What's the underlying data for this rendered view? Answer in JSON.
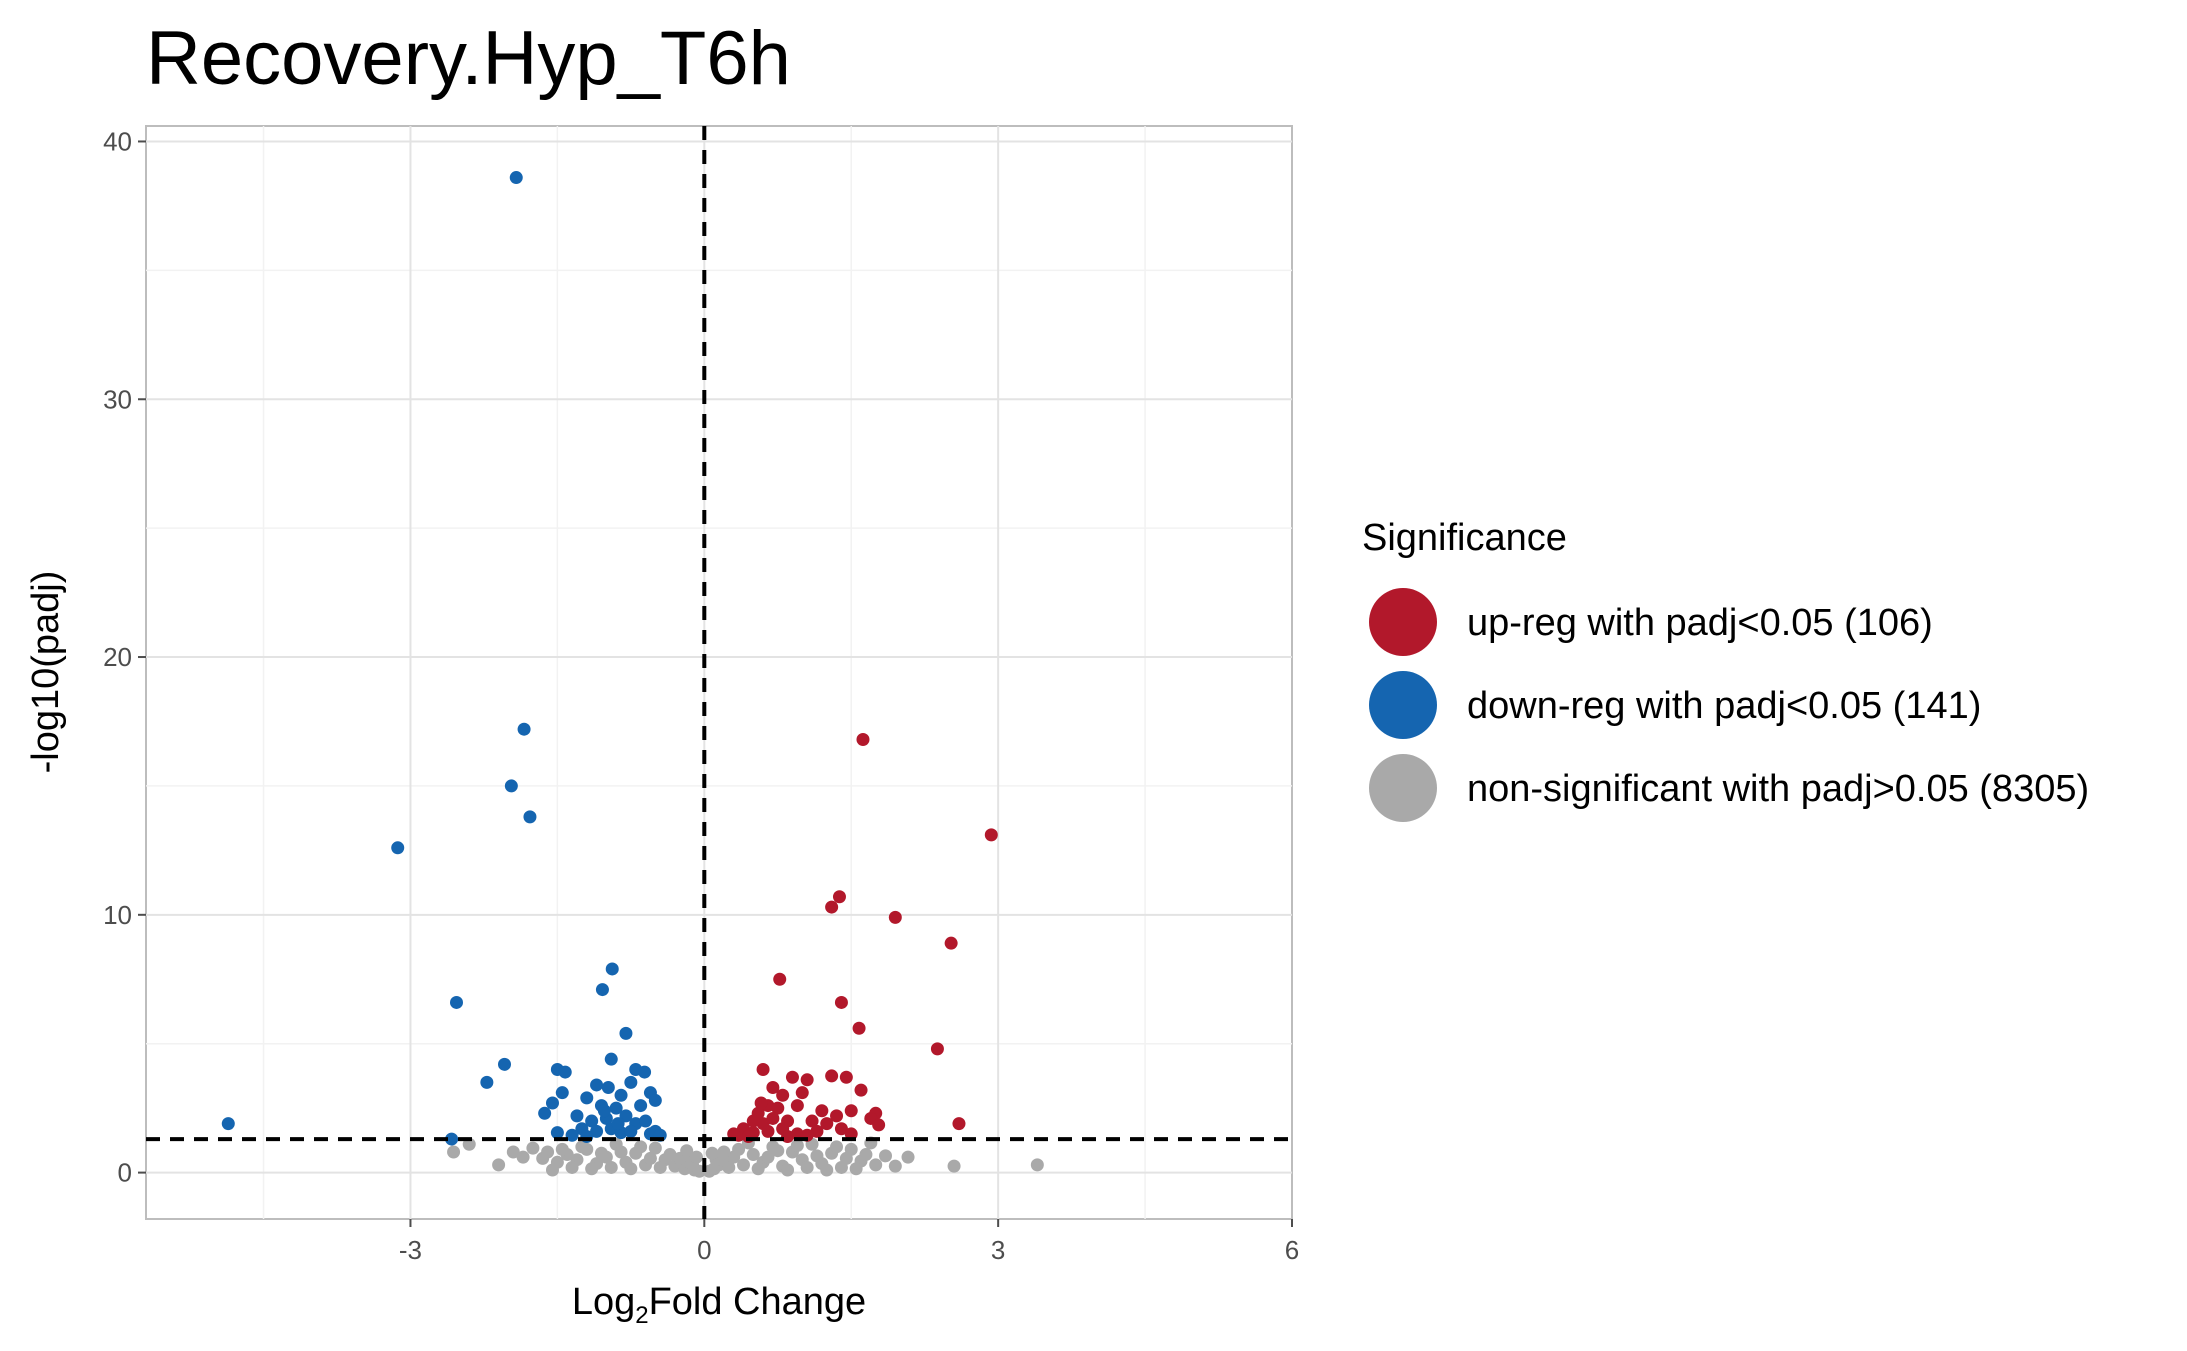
{
  "chart_data": {
    "type": "scatter",
    "title": "Recovery.Hyp_T6h",
    "xlabel": {
      "prefix": "Log",
      "subscript": "2",
      "suffix": "Fold Change"
    },
    "ylabel": "-log10(padj)",
    "xlim": [
      -5.7,
      6.0
    ],
    "ylim": [
      -1.8,
      40.6
    ],
    "x_ticks": [
      -3,
      0,
      3,
      6
    ],
    "x_tick_labels": [
      "-3",
      "0",
      "3",
      "6"
    ],
    "y_ticks": [
      0,
      10,
      20,
      30,
      40
    ],
    "y_tick_labels": [
      "0",
      "10",
      "20",
      "30",
      "40"
    ],
    "grid": true,
    "reference_lines": {
      "vertical_x": 0,
      "horizontal_y": 1.3,
      "style": "dashed"
    },
    "legend": {
      "title": "Significance",
      "placement": "right",
      "entries": [
        {
          "key": "up",
          "label": "up-reg with padj<0.05 (106)",
          "color": "#B2182B"
        },
        {
          "key": "down",
          "label": "down-reg with padj<0.05 (141)",
          "color": "#1565B0"
        },
        {
          "key": "ns",
          "label": "non-significant with padj>0.05 (8305)",
          "color": "#A9A9A9"
        }
      ]
    },
    "series": [
      {
        "key": "down",
        "points": [
          [
            -1.92,
            38.6
          ],
          [
            -1.84,
            17.2
          ],
          [
            -1.97,
            15.0
          ],
          [
            -1.78,
            13.8
          ],
          [
            -3.13,
            12.6
          ],
          [
            -0.94,
            7.9
          ],
          [
            -1.04,
            7.1
          ],
          [
            -2.53,
            6.6
          ],
          [
            -0.8,
            5.4
          ],
          [
            -2.04,
            4.2
          ],
          [
            -0.95,
            4.4
          ],
          [
            -1.5,
            4.0
          ],
          [
            -1.42,
            3.9
          ],
          [
            -0.7,
            4.0
          ],
          [
            -0.61,
            3.9
          ],
          [
            -2.22,
            3.5
          ],
          [
            -1.45,
            3.1
          ],
          [
            -1.55,
            2.7
          ],
          [
            -1.63,
            2.3
          ],
          [
            -1.1,
            3.4
          ],
          [
            -0.98,
            3.3
          ],
          [
            -0.85,
            3.0
          ],
          [
            -0.75,
            3.5
          ],
          [
            -0.55,
            3.1
          ],
          [
            -0.5,
            2.8
          ],
          [
            -1.2,
            2.9
          ],
          [
            -1.05,
            2.6
          ],
          [
            -0.9,
            2.5
          ],
          [
            -0.65,
            2.6
          ],
          [
            -1.3,
            2.2
          ],
          [
            -1.15,
            2.0
          ],
          [
            -1.0,
            2.1
          ],
          [
            -0.8,
            2.2
          ],
          [
            -0.7,
            1.9
          ],
          [
            -0.6,
            2.0
          ],
          [
            -1.25,
            1.7
          ],
          [
            -1.1,
            1.6
          ],
          [
            -0.95,
            1.7
          ],
          [
            -0.85,
            1.55
          ],
          [
            -0.75,
            1.6
          ],
          [
            -1.5,
            1.55
          ],
          [
            -4.86,
            1.9
          ],
          [
            -2.58,
            1.3
          ],
          [
            -1.35,
            1.45
          ],
          [
            -0.55,
            1.5
          ],
          [
            -0.5,
            1.6
          ],
          [
            -0.45,
            1.45
          ],
          [
            -1.2,
            1.4
          ],
          [
            -0.88,
            1.9
          ],
          [
            -1.02,
            2.4
          ]
        ]
      },
      {
        "key": "up",
        "points": [
          [
            1.62,
            16.8
          ],
          [
            2.93,
            13.1
          ],
          [
            1.38,
            10.7
          ],
          [
            1.3,
            10.3
          ],
          [
            1.95,
            9.9
          ],
          [
            2.52,
            8.9
          ],
          [
            0.77,
            7.5
          ],
          [
            1.4,
            6.6
          ],
          [
            1.58,
            5.6
          ],
          [
            2.38,
            4.8
          ],
          [
            0.6,
            4.0
          ],
          [
            1.05,
            3.6
          ],
          [
            1.3,
            3.75
          ],
          [
            1.45,
            3.7
          ],
          [
            1.6,
            3.2
          ],
          [
            0.9,
            3.7
          ],
          [
            0.7,
            3.3
          ],
          [
            0.8,
            3.0
          ],
          [
            1.0,
            3.1
          ],
          [
            1.5,
            2.4
          ],
          [
            1.75,
            2.3
          ],
          [
            2.6,
            1.9
          ],
          [
            1.7,
            2.1
          ],
          [
            0.65,
            2.6
          ],
          [
            0.55,
            2.3
          ],
          [
            0.75,
            2.5
          ],
          [
            0.95,
            2.6
          ],
          [
            1.2,
            2.4
          ],
          [
            1.35,
            2.2
          ],
          [
            0.5,
            2.0
          ],
          [
            0.6,
            1.9
          ],
          [
            0.7,
            2.1
          ],
          [
            0.85,
            2.0
          ],
          [
            1.1,
            2.0
          ],
          [
            1.25,
            1.9
          ],
          [
            0.4,
            1.7
          ],
          [
            0.5,
            1.55
          ],
          [
            0.65,
            1.6
          ],
          [
            0.8,
            1.7
          ],
          [
            0.95,
            1.5
          ],
          [
            1.15,
            1.6
          ],
          [
            1.4,
            1.7
          ],
          [
            1.78,
            1.85
          ],
          [
            0.35,
            1.45
          ],
          [
            0.45,
            1.4
          ],
          [
            0.3,
            1.5
          ],
          [
            1.05,
            1.45
          ],
          [
            0.85,
            1.4
          ],
          [
            1.5,
            1.5
          ],
          [
            0.58,
            2.7
          ]
        ]
      },
      {
        "key": "ns",
        "points": [
          [
            -2.56,
            0.8
          ],
          [
            -2.4,
            1.1
          ],
          [
            -2.1,
            0.3
          ],
          [
            -1.95,
            0.8
          ],
          [
            -1.85,
            0.6
          ],
          [
            -1.75,
            0.95
          ],
          [
            -1.65,
            0.55
          ],
          [
            -1.5,
            0.4
          ],
          [
            -1.4,
            0.7
          ],
          [
            -1.3,
            0.5
          ],
          [
            -1.2,
            0.9
          ],
          [
            -1.1,
            0.35
          ],
          [
            -1.0,
            0.6
          ],
          [
            -0.9,
            1.1
          ],
          [
            -0.8,
            0.4
          ],
          [
            -0.7,
            0.75
          ],
          [
            -0.6,
            0.3
          ],
          [
            -0.5,
            0.95
          ],
          [
            -0.4,
            0.5
          ],
          [
            -0.3,
            0.25
          ],
          [
            -0.2,
            0.15
          ],
          [
            -0.15,
            0.4
          ],
          [
            -0.1,
            0.1
          ],
          [
            -0.05,
            0.05
          ],
          [
            -0.35,
            0.7
          ],
          [
            -0.45,
            0.2
          ],
          [
            -0.55,
            0.55
          ],
          [
            -0.65,
            1.0
          ],
          [
            -0.75,
            0.15
          ],
          [
            -0.85,
            0.8
          ],
          [
            -0.95,
            0.2
          ],
          [
            -1.05,
            0.75
          ],
          [
            -1.15,
            0.15
          ],
          [
            -1.25,
            1.0
          ],
          [
            -1.35,
            0.2
          ],
          [
            -1.45,
            0.9
          ],
          [
            -1.55,
            0.1
          ],
          [
            -1.6,
            0.8
          ],
          [
            -0.25,
            0.55
          ],
          [
            -0.12,
            0.3
          ],
          [
            0.05,
            0.05
          ],
          [
            0.1,
            0.15
          ],
          [
            0.15,
            0.3
          ],
          [
            0.2,
            0.45
          ],
          [
            0.25,
            0.2
          ],
          [
            0.3,
            0.6
          ],
          [
            0.35,
            0.9
          ],
          [
            0.4,
            0.3
          ],
          [
            0.5,
            0.7
          ],
          [
            0.6,
            0.4
          ],
          [
            0.7,
            1.0
          ],
          [
            0.8,
            0.25
          ],
          [
            0.9,
            0.8
          ],
          [
            1.0,
            0.5
          ],
          [
            1.1,
            1.1
          ],
          [
            1.2,
            0.35
          ],
          [
            1.3,
            0.75
          ],
          [
            1.4,
            0.2
          ],
          [
            1.5,
            0.9
          ],
          [
            1.6,
            0.45
          ],
          [
            1.7,
            1.15
          ],
          [
            1.75,
            0.3
          ],
          [
            1.85,
            0.65
          ],
          [
            1.95,
            0.25
          ],
          [
            2.08,
            0.6
          ],
          [
            2.55,
            0.25
          ],
          [
            3.4,
            0.3
          ],
          [
            0.45,
            1.15
          ],
          [
            0.55,
            0.15
          ],
          [
            0.65,
            0.6
          ],
          [
            0.75,
            0.85
          ],
          [
            0.85,
            0.1
          ],
          [
            0.95,
            1.05
          ],
          [
            1.05,
            0.2
          ],
          [
            1.15,
            0.65
          ],
          [
            1.25,
            0.1
          ],
          [
            1.35,
            1.0
          ],
          [
            1.45,
            0.55
          ],
          [
            1.55,
            0.15
          ],
          [
            1.65,
            0.7
          ],
          [
            0.2,
            0.8
          ],
          [
            0.12,
            0.5
          ],
          [
            -0.18,
            0.85
          ],
          [
            -0.08,
            0.6
          ],
          [
            0.08,
            0.75
          ]
        ]
      }
    ]
  }
}
